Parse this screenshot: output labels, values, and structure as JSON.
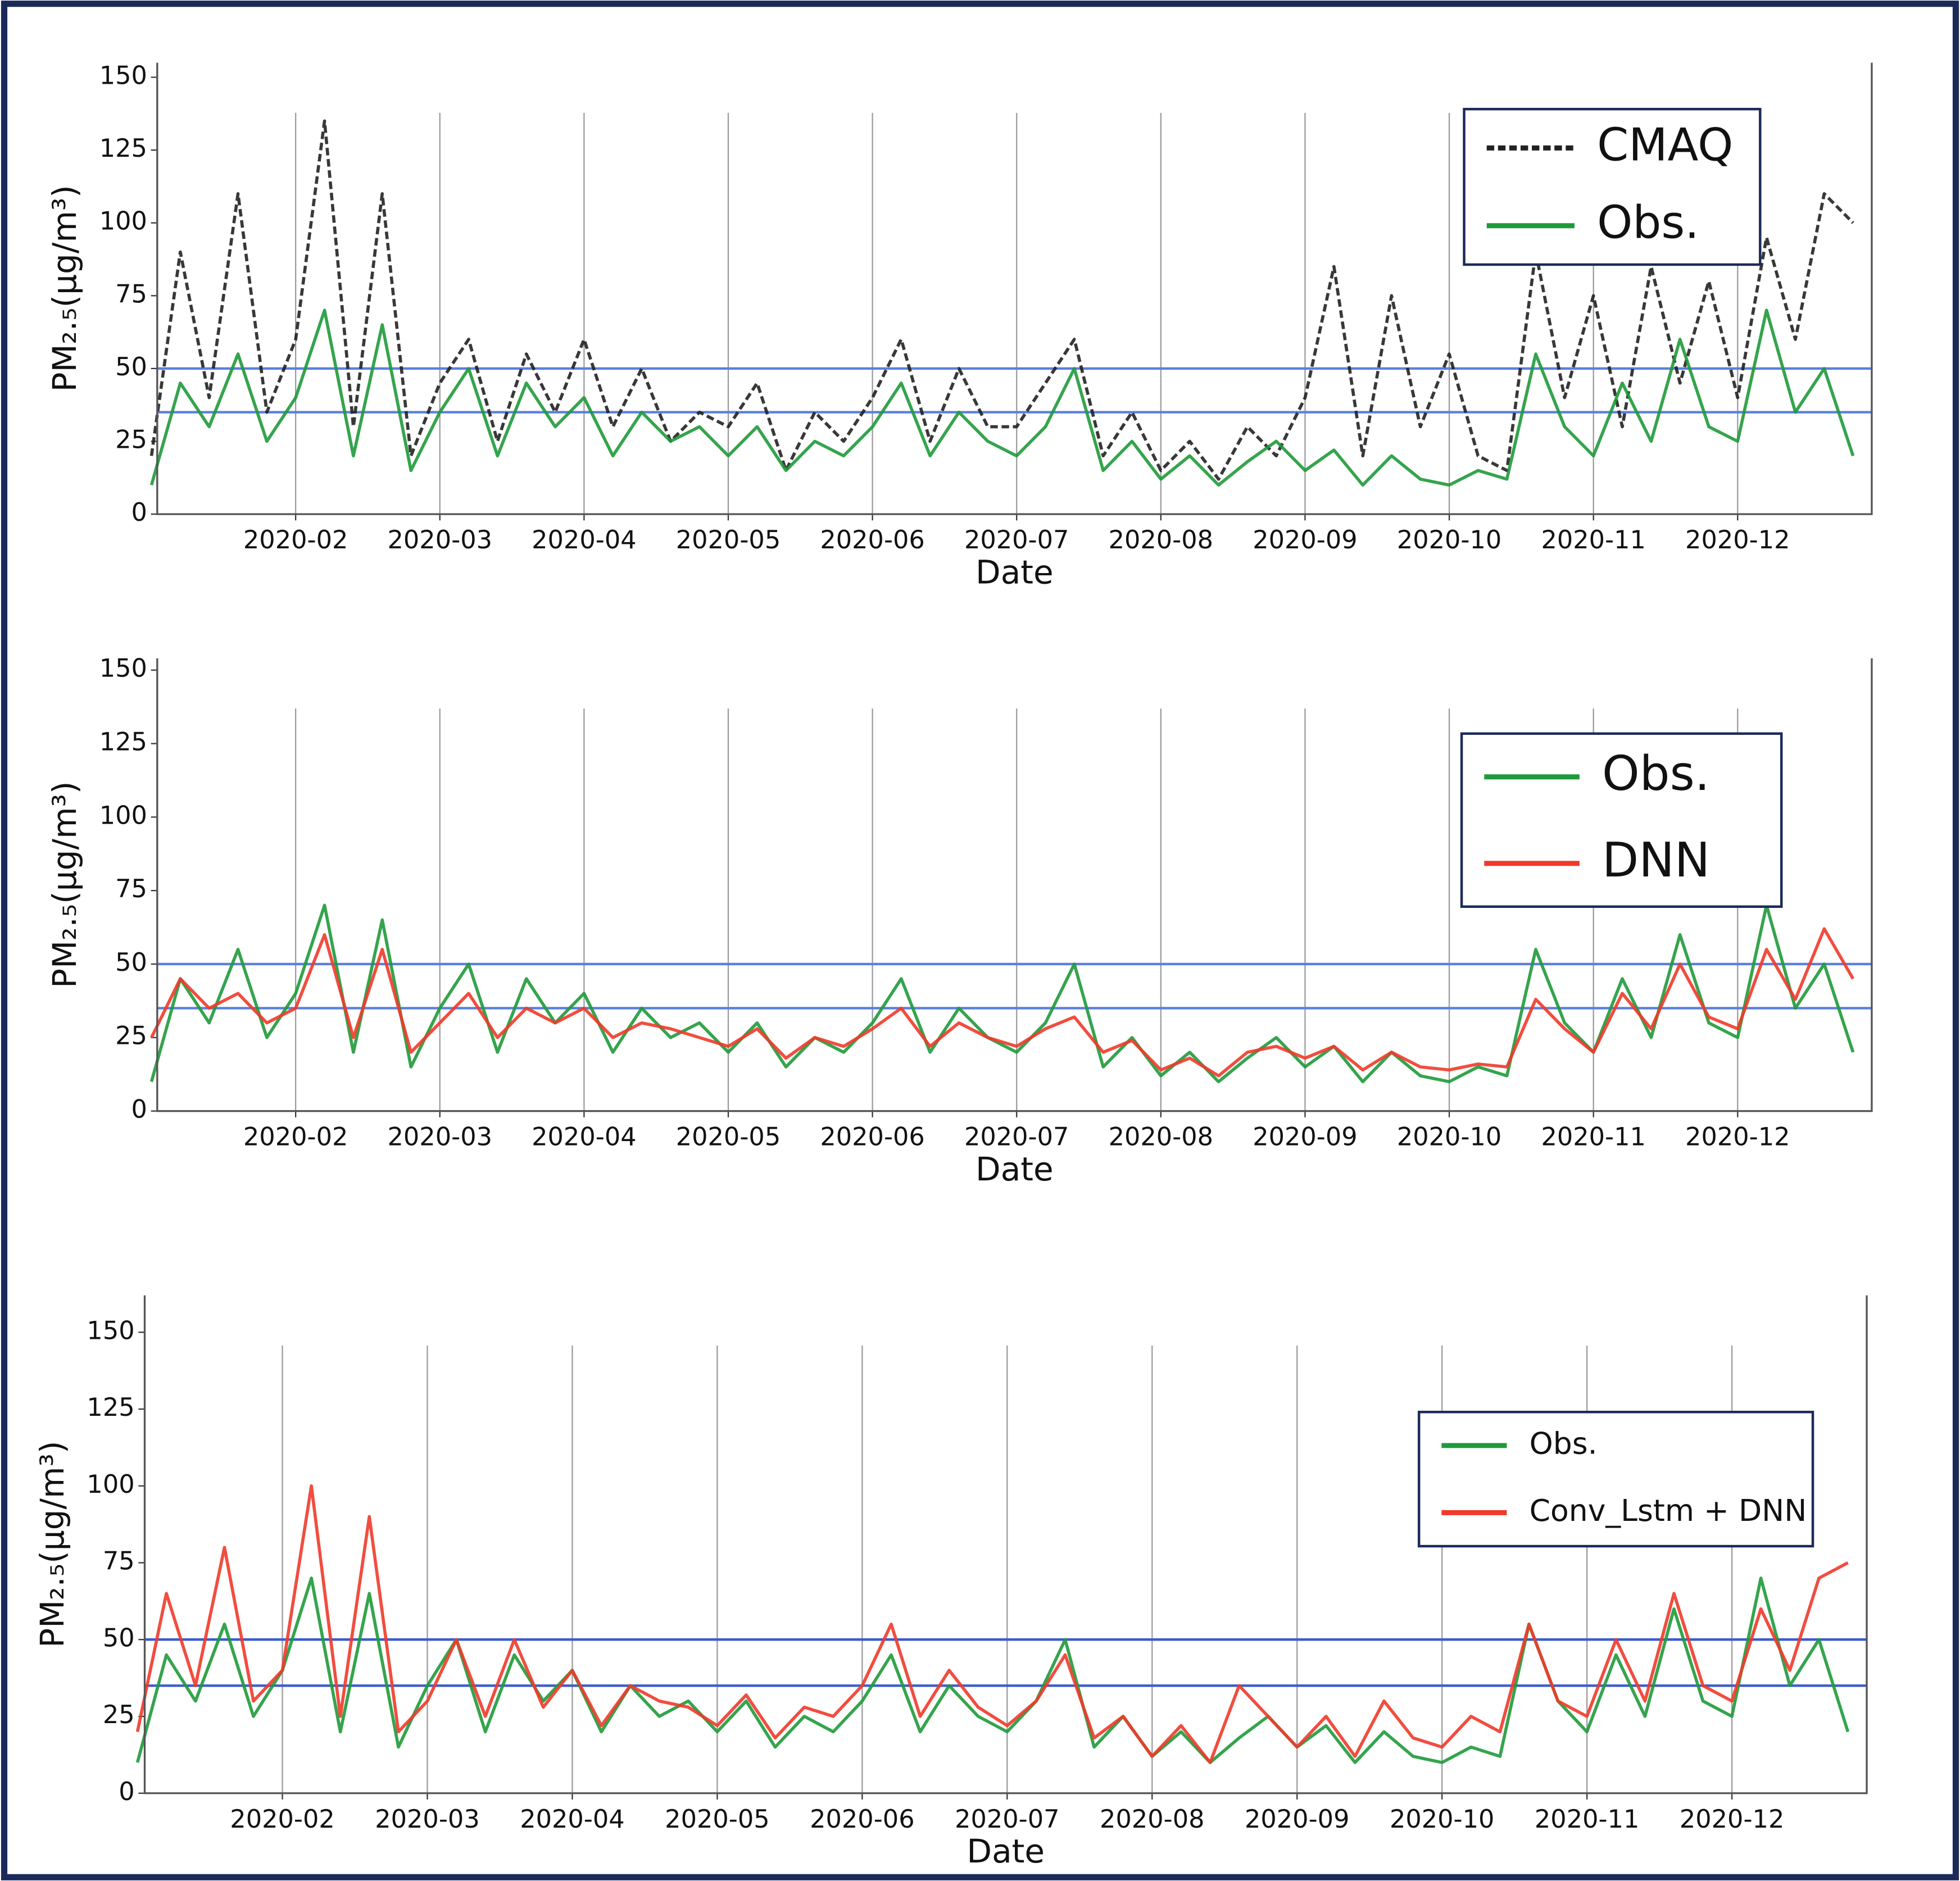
{
  "chart_data": [
    {
      "type": "line",
      "xlabel": "Date",
      "ylabel": "PM₂.₅(μg/m³)",
      "x": [
        1.0,
        1.2,
        1.4,
        1.6,
        1.8,
        2.0,
        2.2,
        2.4,
        2.6,
        2.8,
        3.0,
        3.2,
        3.4,
        3.6,
        3.8,
        4.0,
        4.2,
        4.4,
        4.6,
        4.8,
        5.0,
        5.2,
        5.4,
        5.6,
        5.8,
        6.0,
        6.2,
        6.4,
        6.6,
        6.8,
        7.0,
        7.2,
        7.4,
        7.6,
        7.8,
        8.0,
        8.2,
        8.4,
        8.6,
        8.8,
        9.0,
        9.2,
        9.4,
        9.6,
        9.8,
        10.0,
        10.2,
        10.4,
        10.6,
        10.8,
        11.0,
        11.2,
        11.4,
        11.6,
        11.8,
        12.0,
        12.2,
        12.4,
        12.6,
        12.8
      ],
      "xlim": [
        1.04,
        12.93
      ],
      "xticks": [
        {
          "value": 2,
          "label": "2020-02"
        },
        {
          "value": 3,
          "label": "2020-03"
        },
        {
          "value": 4,
          "label": "2020-04"
        },
        {
          "value": 5,
          "label": "2020-05"
        },
        {
          "value": 6,
          "label": "2020-06"
        },
        {
          "value": 7,
          "label": "2020-07"
        },
        {
          "value": 8,
          "label": "2020-08"
        },
        {
          "value": 9,
          "label": "2020-09"
        },
        {
          "value": 10,
          "label": "2020-10"
        },
        {
          "value": 11,
          "label": "2020-11"
        },
        {
          "value": 12,
          "label": "2020-12"
        }
      ],
      "ylim": [
        0,
        155
      ],
      "yticks": [
        0,
        25,
        50,
        75,
        100,
        125,
        150
      ],
      "hlines": [
        50,
        35
      ],
      "hline_color": "#5b7fe0",
      "grid": "x",
      "legend": "upper right",
      "series": [
        {
          "name": "CMAQ",
          "color": "#222222",
          "linestyle": "dashed",
          "values": [
            20,
            90,
            40,
            110,
            35,
            60,
            135,
            30,
            110,
            20,
            45,
            60,
            25,
            55,
            35,
            60,
            30,
            50,
            25,
            35,
            30,
            45,
            15,
            35,
            25,
            40,
            60,
            25,
            50,
            30,
            30,
            45,
            60,
            20,
            35,
            15,
            25,
            12,
            30,
            20,
            40,
            85,
            20,
            75,
            30,
            55,
            20,
            15,
            90,
            40,
            75,
            30,
            85,
            45,
            80,
            40,
            95,
            60,
            110,
            100
          ]
        },
        {
          "name": "Obs.",
          "color": "#1f9a3a",
          "linestyle": "solid",
          "values": [
            10,
            45,
            30,
            55,
            25,
            40,
            70,
            20,
            65,
            15,
            35,
            50,
            20,
            45,
            30,
            40,
            20,
            35,
            25,
            30,
            20,
            30,
            15,
            25,
            20,
            30,
            45,
            20,
            35,
            25,
            20,
            30,
            50,
            15,
            25,
            12,
            20,
            10,
            18,
            25,
            15,
            22,
            10,
            20,
            12,
            10,
            15,
            12,
            55,
            30,
            20,
            45,
            25,
            60,
            30,
            25,
            70,
            35,
            50,
            20
          ]
        }
      ]
    },
    {
      "type": "line",
      "xlabel": "Date",
      "ylabel": "PM₂.₅(μg/m³)",
      "x": [
        1.0,
        1.2,
        1.4,
        1.6,
        1.8,
        2.0,
        2.2,
        2.4,
        2.6,
        2.8,
        3.0,
        3.2,
        3.4,
        3.6,
        3.8,
        4.0,
        4.2,
        4.4,
        4.6,
        4.8,
        5.0,
        5.2,
        5.4,
        5.6,
        5.8,
        6.0,
        6.2,
        6.4,
        6.6,
        6.8,
        7.0,
        7.2,
        7.4,
        7.6,
        7.8,
        8.0,
        8.2,
        8.4,
        8.6,
        8.8,
        9.0,
        9.2,
        9.4,
        9.6,
        9.8,
        10.0,
        10.2,
        10.4,
        10.6,
        10.8,
        11.0,
        11.2,
        11.4,
        11.6,
        11.8,
        12.0,
        12.2,
        12.4,
        12.6,
        12.8
      ],
      "xlim": [
        1.04,
        12.93
      ],
      "xticks": [
        {
          "value": 2,
          "label": "2020-02"
        },
        {
          "value": 3,
          "label": "2020-03"
        },
        {
          "value": 4,
          "label": "2020-04"
        },
        {
          "value": 5,
          "label": "2020-05"
        },
        {
          "value": 6,
          "label": "2020-06"
        },
        {
          "value": 7,
          "label": "2020-07"
        },
        {
          "value": 8,
          "label": "2020-08"
        },
        {
          "value": 9,
          "label": "2020-09"
        },
        {
          "value": 10,
          "label": "2020-10"
        },
        {
          "value": 11,
          "label": "2020-11"
        },
        {
          "value": 12,
          "label": "2020-12"
        }
      ],
      "ylim": [
        0,
        154
      ],
      "yticks": [
        0,
        25,
        50,
        75,
        100,
        125,
        150
      ],
      "hlines": [
        50,
        35
      ],
      "hline_color": "#5b7fe0",
      "grid": "x",
      "legend": "upper right",
      "series": [
        {
          "name": "Obs.",
          "color": "#1f9a3a",
          "linestyle": "solid",
          "values": [
            10,
            45,
            30,
            55,
            25,
            40,
            70,
            20,
            65,
            15,
            35,
            50,
            20,
            45,
            30,
            40,
            20,
            35,
            25,
            30,
            20,
            30,
            15,
            25,
            20,
            30,
            45,
            20,
            35,
            25,
            20,
            30,
            50,
            15,
            25,
            12,
            20,
            10,
            18,
            25,
            15,
            22,
            10,
            20,
            12,
            10,
            15,
            12,
            55,
            30,
            20,
            45,
            25,
            60,
            30,
            25,
            70,
            35,
            50,
            20
          ]
        },
        {
          "name": "DNN",
          "color": "#f03a2a",
          "linestyle": "solid",
          "values": [
            25,
            45,
            35,
            40,
            30,
            35,
            60,
            25,
            55,
            20,
            30,
            40,
            25,
            35,
            30,
            35,
            25,
            30,
            28,
            25,
            22,
            28,
            18,
            25,
            22,
            28,
            35,
            22,
            30,
            25,
            22,
            28,
            32,
            20,
            24,
            14,
            18,
            12,
            20,
            22,
            18,
            22,
            14,
            20,
            15,
            14,
            16,
            15,
            38,
            28,
            20,
            40,
            28,
            50,
            32,
            28,
            55,
            38,
            62,
            45
          ]
        }
      ]
    },
    {
      "type": "line",
      "xlabel": "Date",
      "ylabel": "PM₂.₅(μg/m³)",
      "x": [
        1.0,
        1.2,
        1.4,
        1.6,
        1.8,
        2.0,
        2.2,
        2.4,
        2.6,
        2.8,
        3.0,
        3.2,
        3.4,
        3.6,
        3.8,
        4.0,
        4.2,
        4.4,
        4.6,
        4.8,
        5.0,
        5.2,
        5.4,
        5.6,
        5.8,
        6.0,
        6.2,
        6.4,
        6.6,
        6.8,
        7.0,
        7.2,
        7.4,
        7.6,
        7.8,
        8.0,
        8.2,
        8.4,
        8.6,
        8.8,
        9.0,
        9.2,
        9.4,
        9.6,
        9.8,
        10.0,
        10.2,
        10.4,
        10.6,
        10.8,
        11.0,
        11.2,
        11.4,
        11.6,
        11.8,
        12.0,
        12.2,
        12.4,
        12.6,
        12.8
      ],
      "xlim": [
        1.05,
        12.93
      ],
      "xticks": [
        {
          "value": 2,
          "label": "2020-02"
        },
        {
          "value": 3,
          "label": "2020-03"
        },
        {
          "value": 4,
          "label": "2020-04"
        },
        {
          "value": 5,
          "label": "2020-05"
        },
        {
          "value": 6,
          "label": "2020-06"
        },
        {
          "value": 7,
          "label": "2020-07"
        },
        {
          "value": 8,
          "label": "2020-08"
        },
        {
          "value": 9,
          "label": "2020-09"
        },
        {
          "value": 10,
          "label": "2020-10"
        },
        {
          "value": 11,
          "label": "2020-11"
        },
        {
          "value": 12,
          "label": "2020-12"
        }
      ],
      "ylim": [
        0,
        162
      ],
      "yticks": [
        0,
        25,
        50,
        75,
        100,
        125,
        150
      ],
      "hlines": [
        50,
        35
      ],
      "hline_color": "#3b5bd0",
      "grid": "x",
      "legend": "upper right",
      "series": [
        {
          "name": "Obs.",
          "color": "#1f9a3a",
          "linestyle": "solid",
          "values": [
            10,
            45,
            30,
            55,
            25,
            40,
            70,
            20,
            65,
            15,
            35,
            50,
            20,
            45,
            30,
            40,
            20,
            35,
            25,
            30,
            20,
            30,
            15,
            25,
            20,
            30,
            45,
            20,
            35,
            25,
            20,
            30,
            50,
            15,
            25,
            12,
            20,
            10,
            18,
            25,
            15,
            22,
            10,
            20,
            12,
            10,
            15,
            12,
            55,
            30,
            20,
            45,
            25,
            60,
            30,
            25,
            70,
            35,
            50,
            20
          ]
        },
        {
          "name": "Conv_Lstm + DNN",
          "color": "#f03a2a",
          "linestyle": "solid",
          "values": [
            20,
            65,
            35,
            80,
            30,
            40,
            100,
            25,
            90,
            20,
            30,
            50,
            25,
            50,
            28,
            40,
            22,
            35,
            30,
            28,
            22,
            32,
            18,
            28,
            25,
            35,
            55,
            25,
            40,
            28,
            22,
            30,
            45,
            18,
            25,
            12,
            22,
            10,
            35,
            25,
            15,
            25,
            12,
            30,
            18,
            15,
            25,
            20,
            55,
            30,
            25,
            50,
            30,
            65,
            35,
            30,
            60,
            40,
            70,
            75
          ]
        }
      ]
    }
  ]
}
